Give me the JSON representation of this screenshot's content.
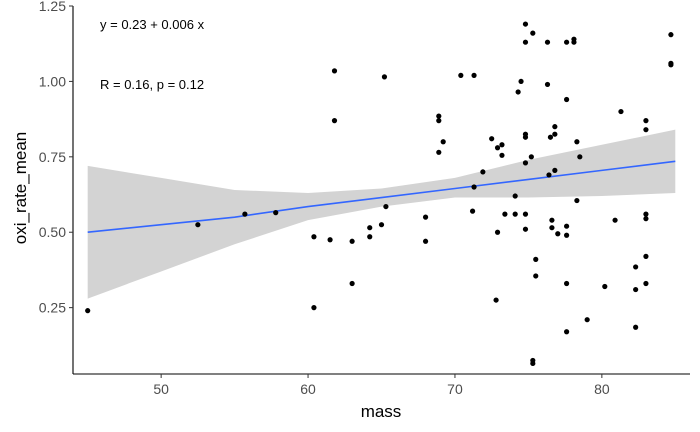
{
  "chart_data": {
    "type": "scatter",
    "xlabel": "mass",
    "ylabel": "oxi_rate_mean",
    "xlim": [
      44,
      86
    ],
    "ylim": [
      0.03,
      1.25
    ],
    "x_ticks": [
      50,
      60,
      70,
      80
    ],
    "x_tick_labels": [
      "50",
      "60",
      "70",
      "80"
    ],
    "y_ticks": [
      0.25,
      0.5,
      0.75,
      1.0,
      1.25
    ],
    "y_tick_labels": [
      "0.25",
      "0.50",
      "0.75",
      "1.00",
      "1.25"
    ],
    "grid": false,
    "annotations": {
      "equation": "y = 0.23 + 0.006 x",
      "stats": "R = 0.16, p = 0.12"
    },
    "regression": {
      "color": "#3366FF",
      "points": [
        [
          45,
          0.5
        ],
        [
          50,
          0.525
        ],
        [
          55,
          0.55
        ],
        [
          60,
          0.585
        ],
        [
          65,
          0.615
        ],
        [
          70,
          0.645
        ],
        [
          75,
          0.675
        ],
        [
          80,
          0.705
        ],
        [
          85,
          0.735
        ]
      ]
    },
    "confidence_band": {
      "color": "#D3D3D3",
      "upper": [
        [
          45,
          0.72
        ],
        [
          50,
          0.68
        ],
        [
          55,
          0.64
        ],
        [
          60,
          0.63
        ],
        [
          65,
          0.645
        ],
        [
          70,
          0.68
        ],
        [
          75,
          0.74
        ],
        [
          80,
          0.79
        ],
        [
          85,
          0.84
        ]
      ],
      "lower": [
        [
          45,
          0.28
        ],
        [
          50,
          0.37
        ],
        [
          55,
          0.46
        ],
        [
          60,
          0.54
        ],
        [
          65,
          0.585
        ],
        [
          70,
          0.615
        ],
        [
          75,
          0.615
        ],
        [
          80,
          0.62
        ],
        [
          85,
          0.63
        ]
      ]
    },
    "points": [
      [
        45.0,
        0.24
      ],
      [
        52.5,
        0.525
      ],
      [
        55.7,
        0.56
      ],
      [
        57.8,
        0.565
      ],
      [
        60.4,
        0.485
      ],
      [
        60.4,
        0.25
      ],
      [
        61.5,
        0.475
      ],
      [
        61.8,
        1.035
      ],
      [
        61.8,
        0.87
      ],
      [
        63.0,
        0.47
      ],
      [
        63.0,
        0.33
      ],
      [
        64.2,
        0.515
      ],
      [
        64.2,
        0.485
      ],
      [
        65.0,
        0.525
      ],
      [
        65.2,
        1.015
      ],
      [
        65.3,
        0.585
      ],
      [
        68.0,
        0.55
      ],
      [
        68.0,
        0.47
      ],
      [
        68.9,
        0.885
      ],
      [
        68.9,
        0.87
      ],
      [
        69.2,
        0.8
      ],
      [
        68.9,
        0.765
      ],
      [
        70.4,
        1.02
      ],
      [
        71.3,
        1.02
      ],
      [
        71.2,
        0.57
      ],
      [
        71.3,
        0.65
      ],
      [
        71.9,
        0.7
      ],
      [
        72.5,
        0.81
      ],
      [
        72.9,
        0.78
      ],
      [
        73.2,
        0.79
      ],
      [
        73.2,
        0.755
      ],
      [
        72.9,
        0.5
      ],
      [
        72.8,
        0.275
      ],
      [
        73.4,
        0.56
      ],
      [
        74.1,
        0.62
      ],
      [
        74.1,
        0.56
      ],
      [
        74.3,
        0.965
      ],
      [
        74.5,
        1.0
      ],
      [
        74.8,
        1.19
      ],
      [
        74.8,
        1.13
      ],
      [
        75.3,
        1.16
      ],
      [
        74.8,
        0.825
      ],
      [
        74.8,
        0.815
      ],
      [
        74.8,
        0.73
      ],
      [
        75.2,
        0.75
      ],
      [
        74.8,
        0.56
      ],
      [
        74.8,
        0.51
      ],
      [
        75.5,
        0.41
      ],
      [
        75.5,
        0.355
      ],
      [
        75.3,
        0.075
      ],
      [
        75.3,
        0.065
      ],
      [
        76.3,
        1.13
      ],
      [
        76.3,
        0.99
      ],
      [
        76.5,
        0.815
      ],
      [
        76.8,
        0.85
      ],
      [
        76.8,
        0.825
      ],
      [
        76.4,
        0.69
      ],
      [
        76.8,
        0.705
      ],
      [
        76.6,
        0.54
      ],
      [
        76.6,
        0.515
      ],
      [
        77.0,
        0.495
      ],
      [
        77.6,
        1.13
      ],
      [
        78.1,
        1.14
      ],
      [
        78.1,
        1.13
      ],
      [
        77.6,
        0.94
      ],
      [
        78.3,
        0.8
      ],
      [
        78.5,
        0.75
      ],
      [
        78.3,
        0.605
      ],
      [
        77.6,
        0.52
      ],
      [
        77.6,
        0.49
      ],
      [
        77.6,
        0.33
      ],
      [
        77.6,
        0.17
      ],
      [
        79.0,
        0.21
      ],
      [
        80.2,
        0.32
      ],
      [
        80.9,
        0.54
      ],
      [
        81.3,
        0.9
      ],
      [
        82.3,
        0.385
      ],
      [
        82.3,
        0.31
      ],
      [
        82.3,
        0.185
      ],
      [
        83.0,
        0.87
      ],
      [
        83.0,
        0.84
      ],
      [
        83.0,
        0.56
      ],
      [
        83.0,
        0.545
      ],
      [
        83.0,
        0.42
      ],
      [
        83.0,
        0.33
      ],
      [
        84.7,
        1.155
      ],
      [
        84.7,
        1.06
      ],
      [
        84.7,
        1.055
      ]
    ]
  }
}
